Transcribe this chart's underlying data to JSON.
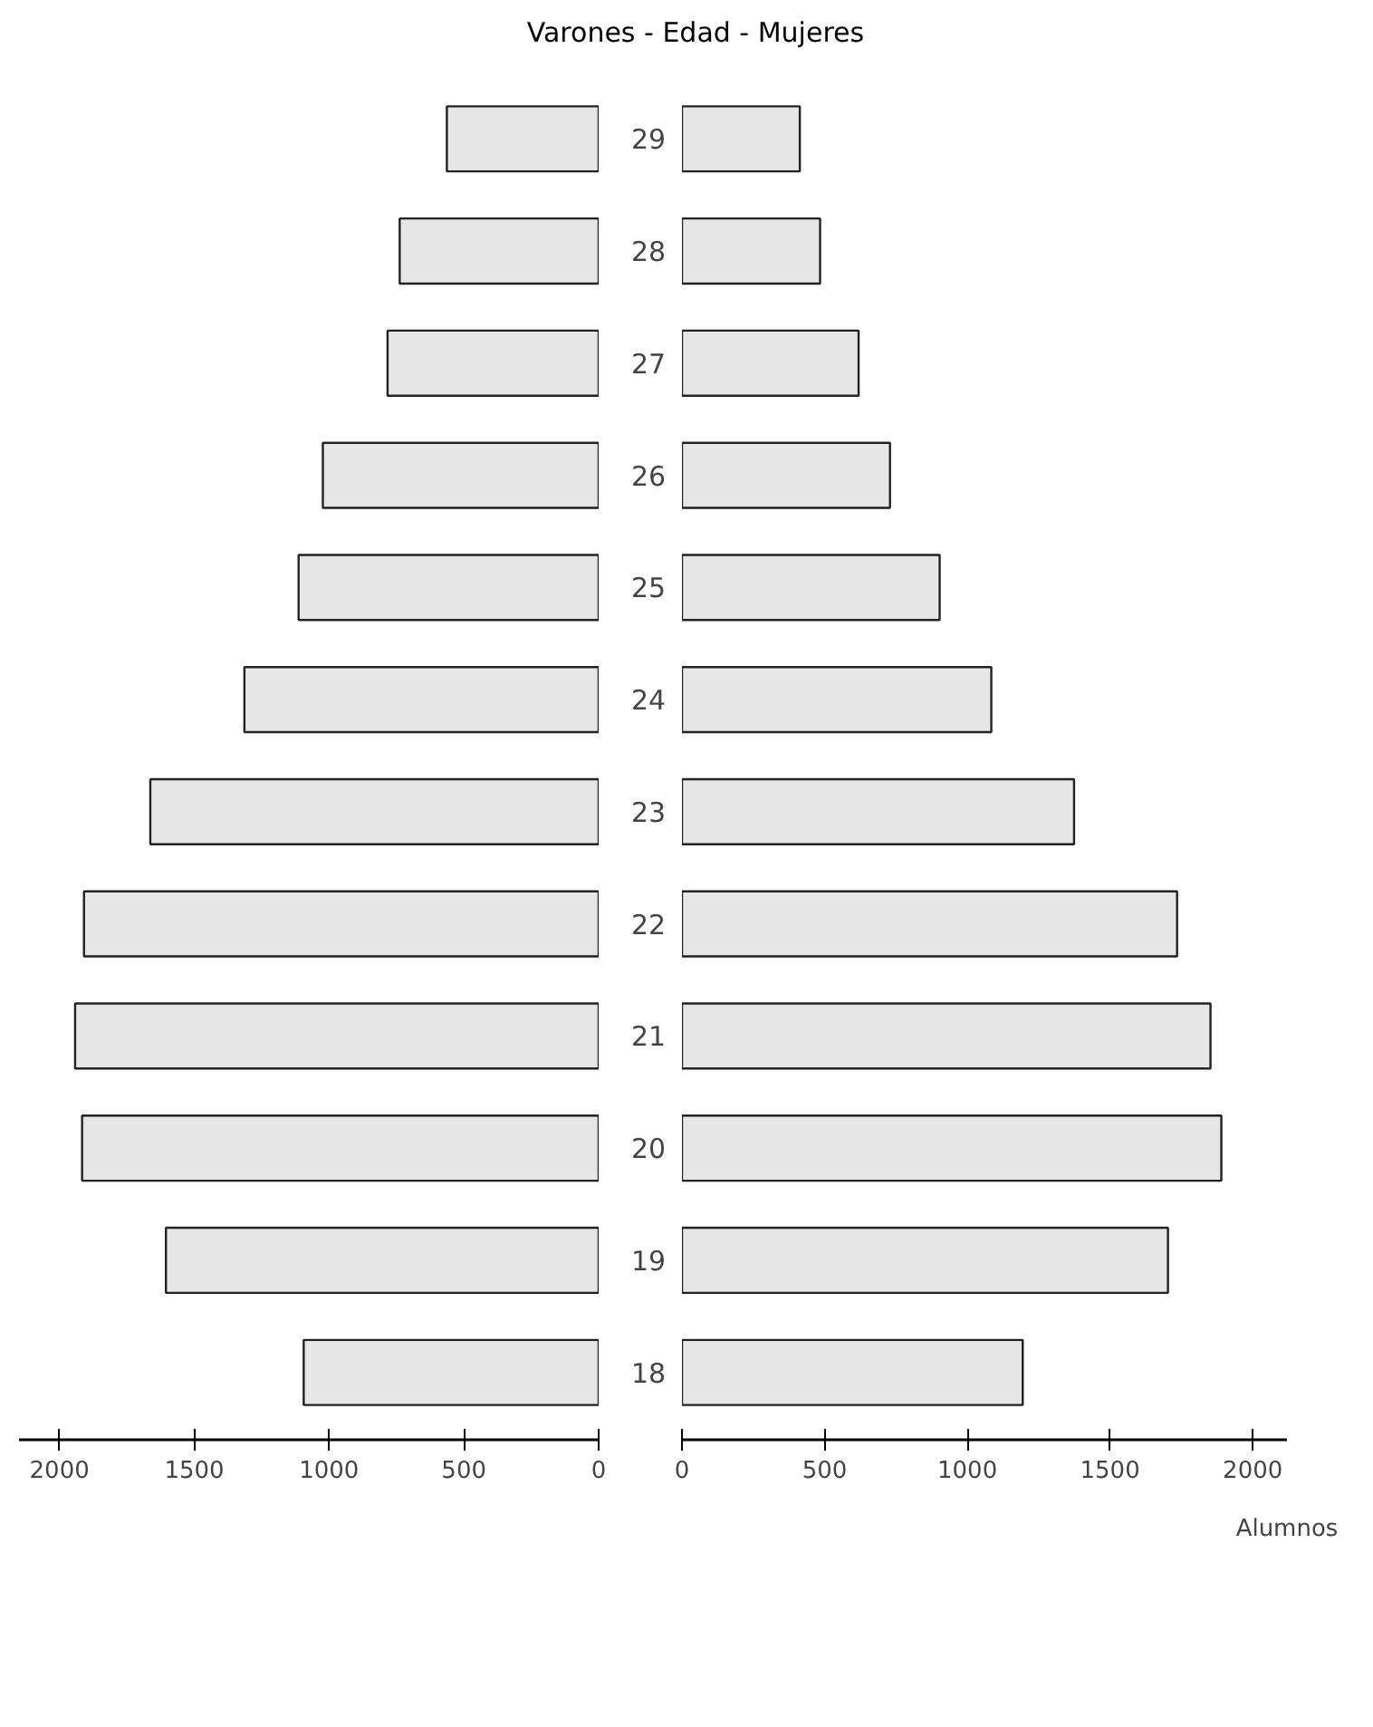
{
  "chart_data": [
    {
      "type": "bar",
      "orientation": "horizontal",
      "title": "Varones - Edad - Mujeres",
      "categories": [
        "29",
        "28",
        "27",
        "26",
        "25",
        "24",
        "23",
        "22",
        "21",
        "20",
        "19",
        "18"
      ],
      "series": [
        {
          "color": "#e6e6e6",
          "values": [
            563,
            738,
            783,
            1023,
            1113,
            1314,
            1663,
            1909,
            1942,
            1916,
            1605,
            1094
          ]
        }
      ],
      "xlim": [
        2150,
        0
      ],
      "xticks": [
        2000,
        1500,
        1000,
        500,
        0
      ],
      "grid": false
    },
    {
      "type": "bar",
      "orientation": "horizontal",
      "xlabel": "Alumnos",
      "categories": [
        "29",
        "28",
        "27",
        "26",
        "25",
        "24",
        "23",
        "22",
        "21",
        "20",
        "19",
        "18"
      ],
      "series": [
        {
          "color": "#e6e6e6",
          "values": [
            413,
            484,
            619,
            729,
            903,
            1084,
            1374,
            1735,
            1852,
            1890,
            1703,
            1194
          ]
        }
      ],
      "xlim": [
        0,
        2120
      ],
      "xticks": [
        0,
        500,
        1000,
        1500,
        2000
      ],
      "tick_labels": "x",
      "grid": false
    }
  ]
}
